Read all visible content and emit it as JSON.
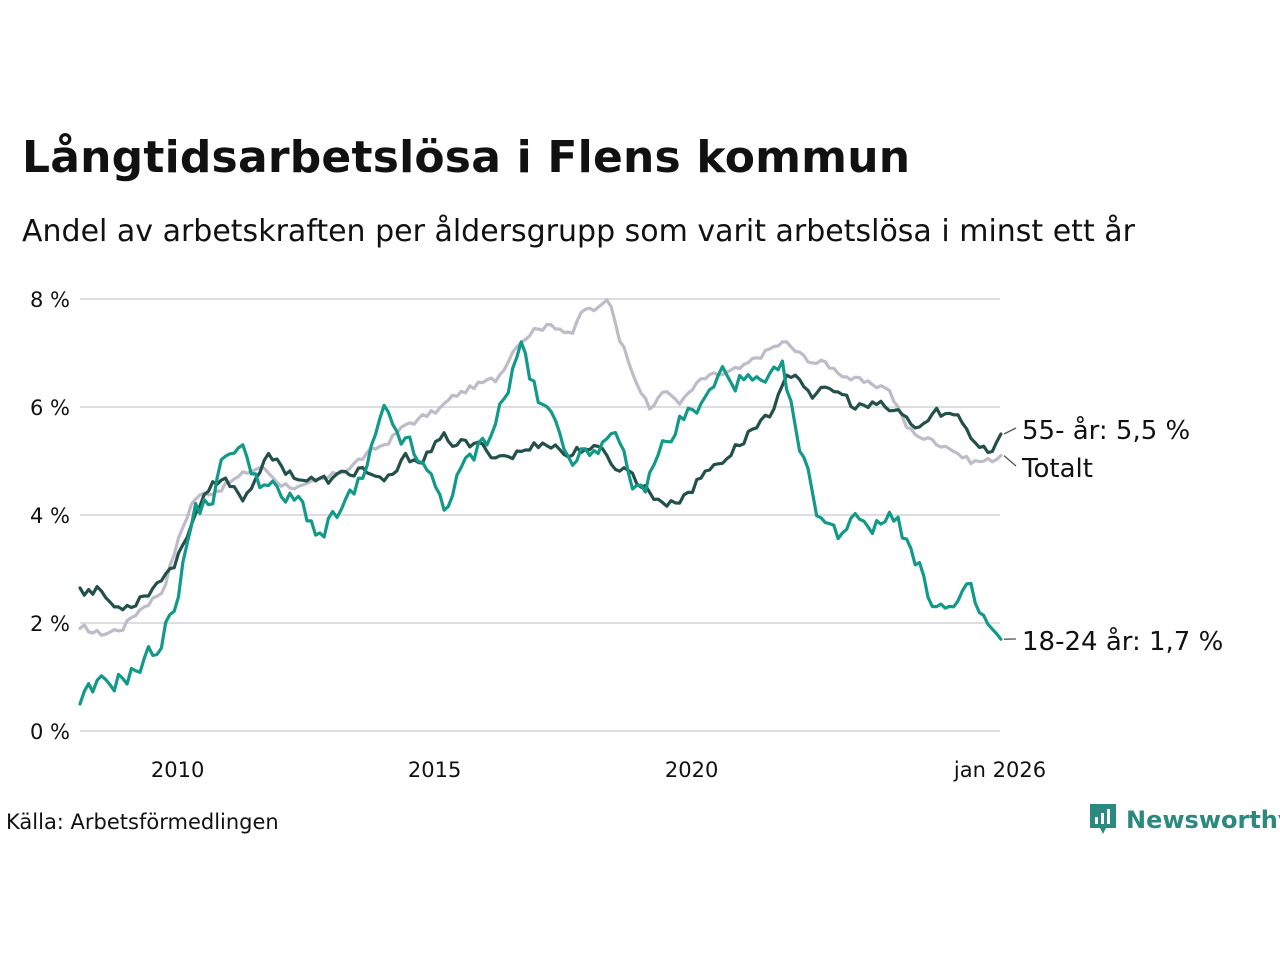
{
  "title": "Långtidsarbetslösa i Flens kommun",
  "subtitle": "Andel av arbetskraften per åldersgrupp som varit arbetslösa i minst ett år",
  "source": "Källa: Arbetsförmedlingen",
  "brand": "Newsworthy",
  "colors": {
    "grid": "#dddde2",
    "youth": "#129a88",
    "senior": "#24504a",
    "total": "#bdbcc8",
    "brand": "#2b8a7e"
  },
  "chart_data": {
    "type": "line",
    "x_start": 2008.1,
    "x_end": 2026.0,
    "xlim": [
      2008.1,
      2026.0
    ],
    "ylim": [
      0,
      8
    ],
    "y_ticks": [
      {
        "value": 0,
        "label": "0 %"
      },
      {
        "value": 2,
        "label": "2 %"
      },
      {
        "value": 4,
        "label": "4 %"
      },
      {
        "value": 6,
        "label": "6 %"
      },
      {
        "value": 8,
        "label": "8 %"
      }
    ],
    "x_ticks": [
      {
        "value": 2010,
        "label": "2010"
      },
      {
        "value": 2015,
        "label": "2015"
      },
      {
        "value": 2020,
        "label": "2020"
      },
      {
        "value": 2026,
        "label": "jan 2026"
      }
    ],
    "series": [
      {
        "key": "total",
        "name": "Totalt",
        "end_label": "Totalt",
        "knots": [
          [
            2008.1,
            1.9
          ],
          [
            2008.5,
            1.8
          ],
          [
            2008.9,
            1.9
          ],
          [
            2009.3,
            2.3
          ],
          [
            2009.7,
            2.6
          ],
          [
            2010.0,
            3.5
          ],
          [
            2010.3,
            4.3
          ],
          [
            2010.8,
            4.5
          ],
          [
            2011.2,
            4.7
          ],
          [
            2011.6,
            4.9
          ],
          [
            2012.0,
            4.6
          ],
          [
            2012.5,
            4.5
          ],
          [
            2013.0,
            4.7
          ],
          [
            2013.5,
            5.0
          ],
          [
            2014.0,
            5.3
          ],
          [
            2014.5,
            5.7
          ],
          [
            2015.0,
            5.9
          ],
          [
            2015.4,
            6.2
          ],
          [
            2015.8,
            6.4
          ],
          [
            2016.2,
            6.5
          ],
          [
            2016.6,
            7.2
          ],
          [
            2017.0,
            7.5
          ],
          [
            2017.4,
            7.5
          ],
          [
            2017.7,
            7.4
          ],
          [
            2017.9,
            7.8
          ],
          [
            2018.2,
            7.8
          ],
          [
            2018.4,
            8.0
          ],
          [
            2018.6,
            7.3
          ],
          [
            2018.9,
            6.6
          ],
          [
            2019.2,
            5.9
          ],
          [
            2019.4,
            6.3
          ],
          [
            2019.8,
            6.1
          ],
          [
            2020.2,
            6.5
          ],
          [
            2020.6,
            6.6
          ],
          [
            2021.0,
            6.7
          ],
          [
            2021.4,
            7.0
          ],
          [
            2021.8,
            7.2
          ],
          [
            2022.2,
            6.9
          ],
          [
            2022.6,
            6.8
          ],
          [
            2023.0,
            6.6
          ],
          [
            2023.4,
            6.4
          ],
          [
            2023.8,
            6.4
          ],
          [
            2024.2,
            5.6
          ],
          [
            2024.6,
            5.4
          ],
          [
            2025.0,
            5.3
          ],
          [
            2025.4,
            5.0
          ],
          [
            2025.8,
            5.0
          ],
          [
            2026.0,
            5.1
          ]
        ],
        "amp": 0.07
      },
      {
        "key": "senior",
        "name": "55- år",
        "end_label": "55- år: 5,5 %",
        "knots": [
          [
            2008.1,
            2.65
          ],
          [
            2008.5,
            2.6
          ],
          [
            2008.8,
            2.25
          ],
          [
            2009.2,
            2.45
          ],
          [
            2009.6,
            2.75
          ],
          [
            2010.0,
            3.2
          ],
          [
            2010.3,
            4.0
          ],
          [
            2010.7,
            4.5
          ],
          [
            2011.0,
            4.6
          ],
          [
            2011.3,
            4.3
          ],
          [
            2011.7,
            5.1
          ],
          [
            2012.0,
            4.9
          ],
          [
            2012.4,
            4.7
          ],
          [
            2012.8,
            4.6
          ],
          [
            2013.2,
            4.7
          ],
          [
            2013.6,
            4.9
          ],
          [
            2014.0,
            4.5
          ],
          [
            2014.4,
            5.0
          ],
          [
            2014.8,
            5.1
          ],
          [
            2015.2,
            5.4
          ],
          [
            2015.6,
            5.3
          ],
          [
            2016.0,
            5.2
          ],
          [
            2016.4,
            5.1
          ],
          [
            2016.8,
            5.2
          ],
          [
            2017.2,
            5.4
          ],
          [
            2017.6,
            5.1
          ],
          [
            2018.0,
            5.3
          ],
          [
            2018.4,
            5.0
          ],
          [
            2018.8,
            4.8
          ],
          [
            2019.2,
            4.4
          ],
          [
            2019.6,
            4.2
          ],
          [
            2020.0,
            4.5
          ],
          [
            2020.4,
            4.9
          ],
          [
            2020.8,
            5.2
          ],
          [
            2021.2,
            5.6
          ],
          [
            2021.6,
            6.0
          ],
          [
            2022.0,
            6.7
          ],
          [
            2022.4,
            6.2
          ],
          [
            2022.8,
            6.3
          ],
          [
            2023.2,
            6.0
          ],
          [
            2023.6,
            6.0
          ],
          [
            2024.0,
            5.9
          ],
          [
            2024.4,
            5.6
          ],
          [
            2024.8,
            5.9
          ],
          [
            2025.2,
            5.8
          ],
          [
            2025.5,
            5.4
          ],
          [
            2025.8,
            5.2
          ],
          [
            2026.0,
            5.5
          ]
        ],
        "amp": 0.11
      },
      {
        "key": "youth",
        "name": "18-24 år",
        "end_label": "18-24 år: 1,7 %",
        "knots": [
          [
            2008.1,
            0.5
          ],
          [
            2008.5,
            0.8
          ],
          [
            2008.9,
            1.0
          ],
          [
            2009.3,
            1.2
          ],
          [
            2009.7,
            1.7
          ],
          [
            2010.0,
            2.6
          ],
          [
            2010.3,
            4.0
          ],
          [
            2010.7,
            4.4
          ],
          [
            2011.0,
            5.3
          ],
          [
            2011.3,
            5.1
          ],
          [
            2011.6,
            4.7
          ],
          [
            2012.0,
            4.3
          ],
          [
            2012.4,
            4.2
          ],
          [
            2012.8,
            3.6
          ],
          [
            2013.2,
            4.1
          ],
          [
            2013.6,
            4.6
          ],
          [
            2014.0,
            5.8
          ],
          [
            2014.4,
            5.4
          ],
          [
            2014.8,
            4.8
          ],
          [
            2015.2,
            4.2
          ],
          [
            2015.6,
            4.9
          ],
          [
            2016.0,
            5.4
          ],
          [
            2016.4,
            6.3
          ],
          [
            2016.7,
            7.2
          ],
          [
            2017.0,
            6.1
          ],
          [
            2017.4,
            5.6
          ],
          [
            2017.8,
            5.0
          ],
          [
            2018.2,
            5.4
          ],
          [
            2018.6,
            5.2
          ],
          [
            2019.0,
            4.3
          ],
          [
            2019.4,
            5.2
          ],
          [
            2019.8,
            5.8
          ],
          [
            2020.2,
            6.0
          ],
          [
            2020.6,
            6.6
          ],
          [
            2021.0,
            6.5
          ],
          [
            2021.4,
            6.3
          ],
          [
            2021.8,
            6.6
          ],
          [
            2022.1,
            5.2
          ],
          [
            2022.4,
            4.2
          ],
          [
            2022.8,
            3.6
          ],
          [
            2023.2,
            4.1
          ],
          [
            2023.6,
            3.8
          ],
          [
            2024.0,
            4.1
          ],
          [
            2024.3,
            3.2
          ],
          [
            2024.6,
            2.6
          ],
          [
            2025.0,
            2.2
          ],
          [
            2025.4,
            2.5
          ],
          [
            2025.7,
            2.0
          ],
          [
            2026.0,
            1.7
          ]
        ],
        "amp": 0.2
      }
    ]
  }
}
